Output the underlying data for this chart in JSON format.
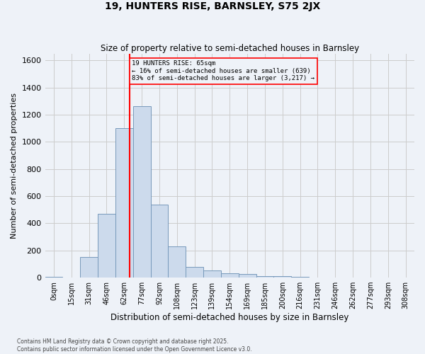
{
  "title1": "19, HUNTERS RISE, BARNSLEY, S75 2JX",
  "title2": "Size of property relative to semi-detached houses in Barnsley",
  "xlabel": "Distribution of semi-detached houses by size in Barnsley",
  "ylabel": "Number of semi-detached properties",
  "bin_labels": [
    "0sqm",
    "15sqm",
    "31sqm",
    "46sqm",
    "62sqm",
    "77sqm",
    "92sqm",
    "108sqm",
    "123sqm",
    "139sqm",
    "154sqm",
    "169sqm",
    "185sqm",
    "200sqm",
    "216sqm",
    "231sqm",
    "246sqm",
    "262sqm",
    "277sqm",
    "293sqm",
    "308sqm"
  ],
  "bar_heights": [
    5,
    0,
    150,
    470,
    1100,
    1260,
    540,
    230,
    80,
    55,
    30,
    25,
    12,
    10,
    8,
    3,
    3,
    3,
    3,
    0,
    3
  ],
  "bar_color": "#ccdaec",
  "bar_edge_color": "#7799bb",
  "grid_color": "#cccccc",
  "background_color": "#eef2f8",
  "property_line_index": 4.3,
  "property_line_color": "red",
  "annotation_text": "19 HUNTERS RISE: 65sqm\n← 16% of semi-detached houses are smaller (639)\n83% of semi-detached houses are larger (3,217) →",
  "annotation_box_color": "red",
  "footnote": "Contains HM Land Registry data © Crown copyright and database right 2025.\nContains public sector information licensed under the Open Government Licence v3.0.",
  "ylim": [
    0,
    1650
  ],
  "yticks": [
    0,
    200,
    400,
    600,
    800,
    1000,
    1200,
    1400,
    1600
  ]
}
